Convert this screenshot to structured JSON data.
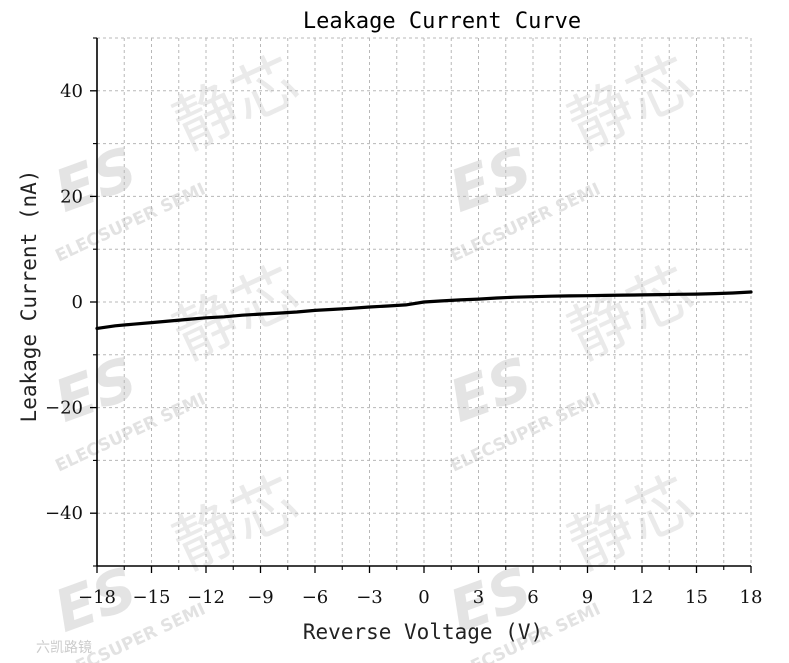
{
  "chart_data": {
    "type": "line",
    "title": "Leakage Current Curve",
    "xlabel": "Reverse Voltage (V)",
    "ylabel": "Leakage Current (nA)",
    "xlim": [
      -18,
      18
    ],
    "ylim": [
      -50,
      50
    ],
    "x_ticks": [
      "−18",
      "−15",
      "−12",
      "−9",
      "−6",
      "−3",
      "0",
      "3",
      "6",
      "9",
      "12",
      "15",
      "18"
    ],
    "y_ticks": [
      "−40",
      "−20",
      "0",
      "20",
      "40"
    ],
    "grid": true,
    "series": [
      {
        "color": "#000000",
        "x": [
          -18,
          -17,
          -16,
          -15,
          -14,
          -13,
          -12,
          -11,
          -10,
          -9,
          -8,
          -7,
          -6,
          -5,
          -4,
          -3,
          -2,
          -1,
          0,
          1,
          2,
          3,
          4,
          5,
          6,
          7,
          8,
          9,
          10,
          11,
          12,
          13,
          14,
          15,
          16,
          17,
          18
        ],
        "y": [
          -5.0,
          -4.5,
          -4.2,
          -3.9,
          -3.6,
          -3.3,
          -3.0,
          -2.8,
          -2.5,
          -2.3,
          -2.1,
          -1.9,
          -1.6,
          -1.4,
          -1.2,
          -0.95,
          -0.75,
          -0.55,
          0.0,
          0.2,
          0.4,
          0.55,
          0.75,
          0.9,
          1.0,
          1.1,
          1.15,
          1.2,
          1.25,
          1.3,
          1.35,
          1.4,
          1.45,
          1.5,
          1.6,
          1.7,
          1.9
        ]
      }
    ]
  },
  "watermark": {
    "chinese": "静芯",
    "logo": "ES",
    "english": "ELECSUPER SEMI",
    "footer": "六凯路镜"
  }
}
